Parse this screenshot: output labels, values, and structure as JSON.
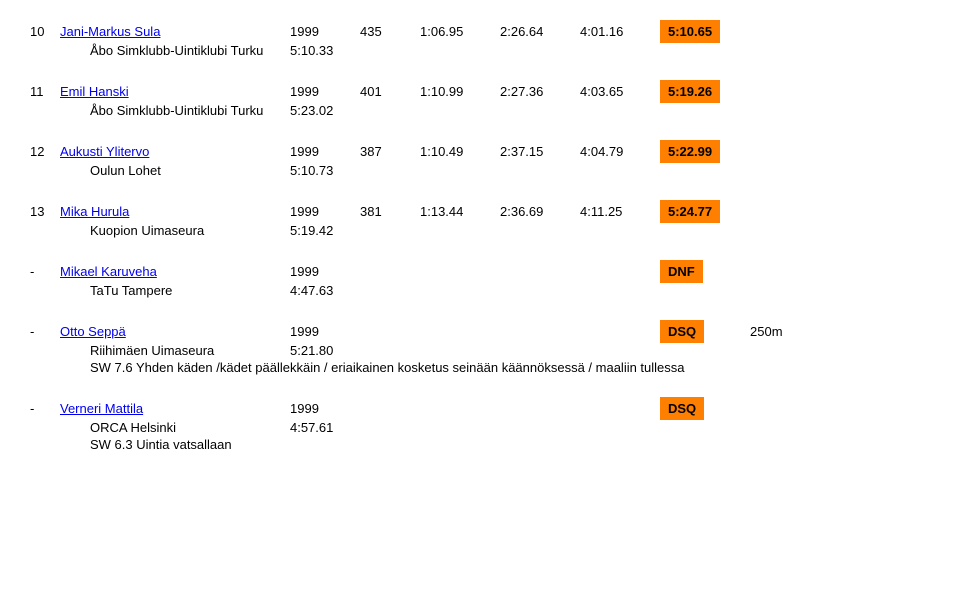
{
  "colors": {
    "link": "#0000ee",
    "highlight_bg": "#ff7f00",
    "text": "#000000",
    "background": "#ffffff"
  },
  "results": [
    {
      "rank": "10",
      "name": "Jani-Markus Sula",
      "year": "1999",
      "num": "435",
      "t1": "1:06.95",
      "t2": "2:26.64",
      "t3": "4:01.16",
      "final": "5:10.65",
      "highlight": true,
      "club": "Åbo Simklubb-Uintiklubi Turku",
      "subtime": "5:10.33"
    },
    {
      "rank": "11",
      "name": "Emil Hanski",
      "year": "1999",
      "num": "401",
      "t1": "1:10.99",
      "t2": "2:27.36",
      "t3": "4:03.65",
      "final": "5:19.26",
      "highlight": true,
      "club": "Åbo Simklubb-Uintiklubi Turku",
      "subtime": "5:23.02"
    },
    {
      "rank": "12",
      "name": "Aukusti Ylitervo",
      "year": "1999",
      "num": "387",
      "t1": "1:10.49",
      "t2": "2:37.15",
      "t3": "4:04.79",
      "final": "5:22.99",
      "highlight": true,
      "club": "Oulun Lohet",
      "subtime": "5:10.73"
    },
    {
      "rank": "13",
      "name": "Mika Hurula",
      "year": "1999",
      "num": "381",
      "t1": "1:13.44",
      "t2": "2:36.69",
      "t3": "4:11.25",
      "final": "5:24.77",
      "highlight": true,
      "club": "Kuopion Uimaseura",
      "subtime": "5:19.42"
    },
    {
      "rank": "-",
      "name": "Mikael Karuveha",
      "year": "1999",
      "num": "",
      "t1": "",
      "t2": "",
      "t3": "",
      "final": "DNF",
      "highlight": true,
      "club": "TaTu Tampere",
      "subtime": "4:47.63"
    },
    {
      "rank": "-",
      "name": "Otto Seppä",
      "year": "1999",
      "num": "",
      "t1": "",
      "t2": "",
      "t3": "",
      "final": "DSQ",
      "highlight": true,
      "extra": "250m",
      "club": "Riihimäen Uimaseura",
      "subtime": "5:21.80",
      "note": "SW 7.6 Yhden käden /kädet päällekkäin / eriaikainen kosketus seinään käännöksessä / maaliin tullessa"
    },
    {
      "rank": "-",
      "name": "Verneri Mattila",
      "year": "1999",
      "num": "",
      "t1": "",
      "t2": "",
      "t3": "",
      "final": "DSQ",
      "highlight": true,
      "club": "ORCA Helsinki",
      "subtime": "4:57.61",
      "note": "SW 6.3 Uintia vatsallaan"
    }
  ]
}
